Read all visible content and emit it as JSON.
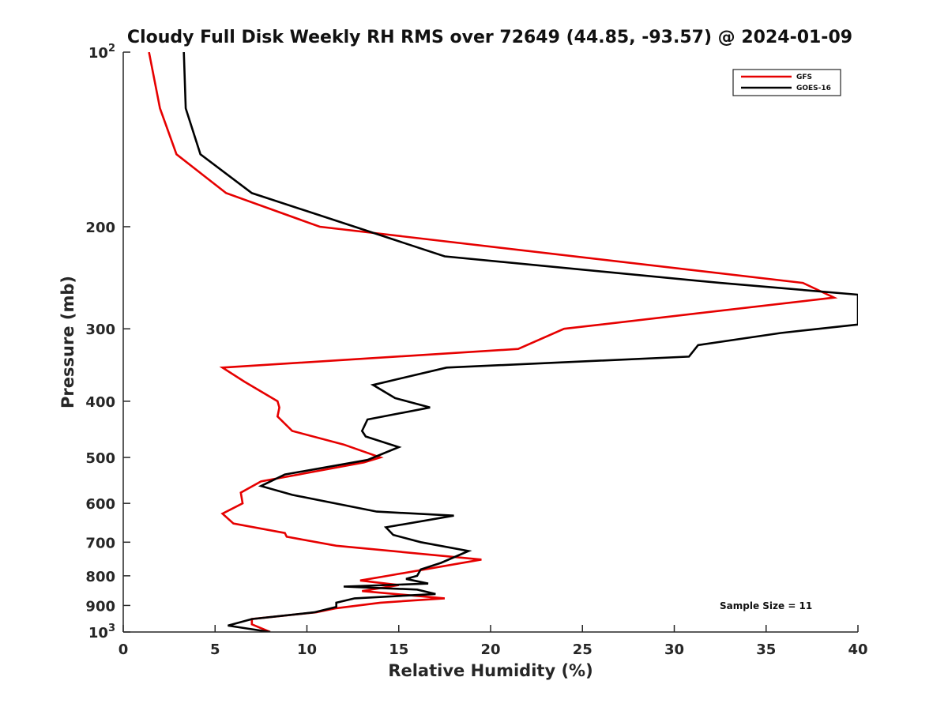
{
  "chart_data": {
    "type": "line",
    "title": "Cloudy Full Disk Weekly RH RMS over 72649 (44.85, -93.57) @ 2024-01-09",
    "xlabel": "Relative Humidity (%)",
    "ylabel": "Pressure (mb)",
    "xlim": [
      0,
      40
    ],
    "ylim": [
      100,
      1000
    ],
    "y_scale": "log",
    "y_reversed": true,
    "grid": false,
    "legend_position": "top-right",
    "x_ticks": [
      {
        "value": 0,
        "label": "0"
      },
      {
        "value": 5,
        "label": "5"
      },
      {
        "value": 10,
        "label": "10"
      },
      {
        "value": 15,
        "label": "15"
      },
      {
        "value": 20,
        "label": "20"
      },
      {
        "value": 25,
        "label": "25"
      },
      {
        "value": 30,
        "label": "30"
      },
      {
        "value": 35,
        "label": "35"
      },
      {
        "value": 40,
        "label": "40"
      }
    ],
    "y_ticks": [
      {
        "value": 100,
        "label": "10",
        "sup": "2"
      },
      {
        "value": 200,
        "label": "200",
        "sup": ""
      },
      {
        "value": 300,
        "label": "300",
        "sup": ""
      },
      {
        "value": 400,
        "label": "400",
        "sup": ""
      },
      {
        "value": 500,
        "label": "500",
        "sup": ""
      },
      {
        "value": 600,
        "label": "600",
        "sup": ""
      },
      {
        "value": 700,
        "label": "700",
        "sup": ""
      },
      {
        "value": 800,
        "label": "800",
        "sup": ""
      },
      {
        "value": 900,
        "label": "900",
        "sup": ""
      },
      {
        "value": 1000,
        "label": "10",
        "sup": "3"
      }
    ],
    "series": [
      {
        "name": "GFS",
        "color": "#e60000",
        "points": [
          [
            1.4,
            100
          ],
          [
            2.0,
            125
          ],
          [
            2.9,
            150
          ],
          [
            5.6,
            175
          ],
          [
            10.7,
            200
          ],
          [
            37.0,
            250
          ],
          [
            38.7,
            265
          ],
          [
            24.0,
            300
          ],
          [
            21.5,
            325
          ],
          [
            5.4,
            350
          ],
          [
            6.6,
            370
          ],
          [
            8.4,
            400
          ],
          [
            8.5,
            410
          ],
          [
            8.4,
            425
          ],
          [
            9.2,
            450
          ],
          [
            12.0,
            475
          ],
          [
            14.0,
            500
          ],
          [
            13.1,
            510
          ],
          [
            7.5,
            550
          ],
          [
            6.4,
            575
          ],
          [
            6.5,
            600
          ],
          [
            5.4,
            625
          ],
          [
            6.0,
            650
          ],
          [
            8.8,
            675
          ],
          [
            8.9,
            685
          ],
          [
            11.6,
            710
          ],
          [
            19.5,
            750
          ],
          [
            14.4,
            800
          ],
          [
            12.9,
            815
          ],
          [
            15.0,
            830
          ],
          [
            13.0,
            850
          ],
          [
            17.5,
            875
          ],
          [
            14.0,
            890
          ],
          [
            11.6,
            910
          ],
          [
            10.5,
            925
          ],
          [
            7.0,
            950
          ],
          [
            7.0,
            970
          ],
          [
            8.0,
            1000
          ]
        ]
      },
      {
        "name": "GOES-16",
        "color": "#000000",
        "points": [
          [
            3.3,
            100
          ],
          [
            3.4,
            125
          ],
          [
            4.2,
            150
          ],
          [
            7.0,
            175
          ],
          [
            12.6,
            200
          ],
          [
            17.5,
            225
          ],
          [
            32.5,
            250
          ],
          [
            40.0,
            262
          ],
          [
            40.0,
            295
          ],
          [
            35.8,
            305
          ],
          [
            31.3,
            320
          ],
          [
            30.8,
            335
          ],
          [
            17.6,
            350
          ],
          [
            13.6,
            375
          ],
          [
            14.8,
            395
          ],
          [
            16.7,
            410
          ],
          [
            13.3,
            430
          ],
          [
            13.0,
            450
          ],
          [
            13.2,
            460
          ],
          [
            15.0,
            480
          ],
          [
            13.3,
            505
          ],
          [
            8.8,
            535
          ],
          [
            7.5,
            560
          ],
          [
            9.2,
            580
          ],
          [
            13.8,
            620
          ],
          [
            18.0,
            630
          ],
          [
            14.3,
            660
          ],
          [
            14.7,
            680
          ],
          [
            16.2,
            700
          ],
          [
            18.8,
            725
          ],
          [
            17.3,
            760
          ],
          [
            16.2,
            780
          ],
          [
            16.0,
            800
          ],
          [
            15.4,
            810
          ],
          [
            16.6,
            825
          ],
          [
            12.0,
            835
          ],
          [
            16.0,
            845
          ],
          [
            17.0,
            860
          ],
          [
            12.6,
            875
          ],
          [
            11.6,
            890
          ],
          [
            11.6,
            905
          ],
          [
            10.4,
            925
          ],
          [
            7.0,
            950
          ],
          [
            5.7,
            975
          ],
          [
            8.0,
            1000
          ]
        ]
      }
    ],
    "annotation": "Sample Size = 11"
  }
}
